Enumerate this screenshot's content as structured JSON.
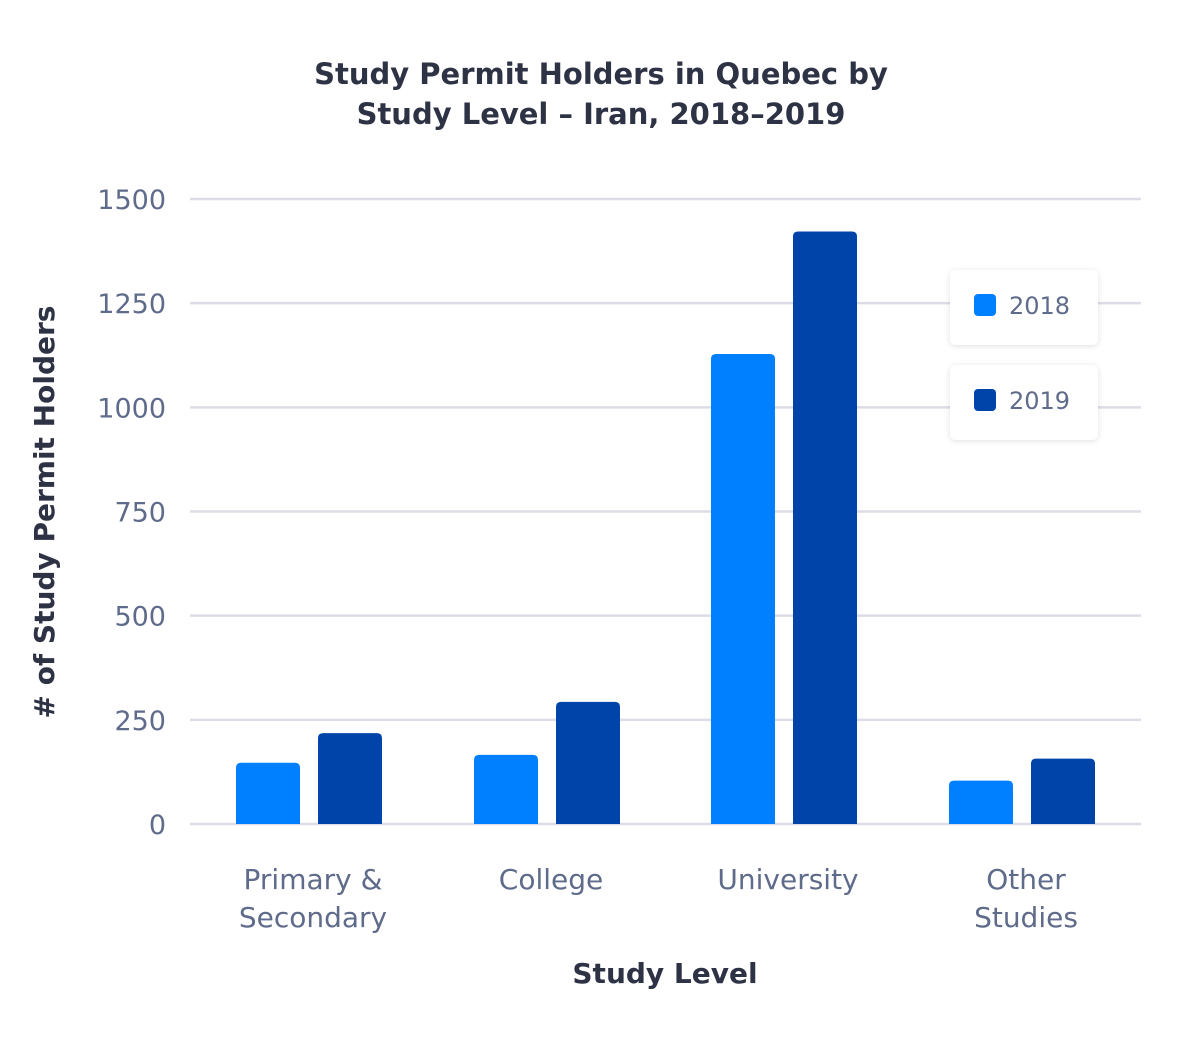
{
  "chart_data": {
    "type": "bar",
    "title": [
      "Study Permit Holders in Quebec by",
      "Study Level – Iran, 2018–2019"
    ],
    "xlabel": "Study Level",
    "ylabel": "# of Study Permit Holders",
    "categories": [
      [
        "Primary &",
        "Secondary"
      ],
      [
        "College"
      ],
      [
        "University"
      ],
      [
        "Other",
        "Studies"
      ]
    ],
    "ylim": [
      0,
      1500
    ],
    "yticks": [
      0,
      250,
      500,
      750,
      1000,
      1250,
      1500
    ],
    "grid": true,
    "legend_position": "top-right",
    "series": [
      {
        "name": "2018",
        "color": "#0080ff",
        "values": [
          147,
          166,
          1128,
          104
        ]
      },
      {
        "name": "2019",
        "color": "#0044aa",
        "values": [
          218,
          293,
          1422,
          157
        ]
      }
    ]
  }
}
